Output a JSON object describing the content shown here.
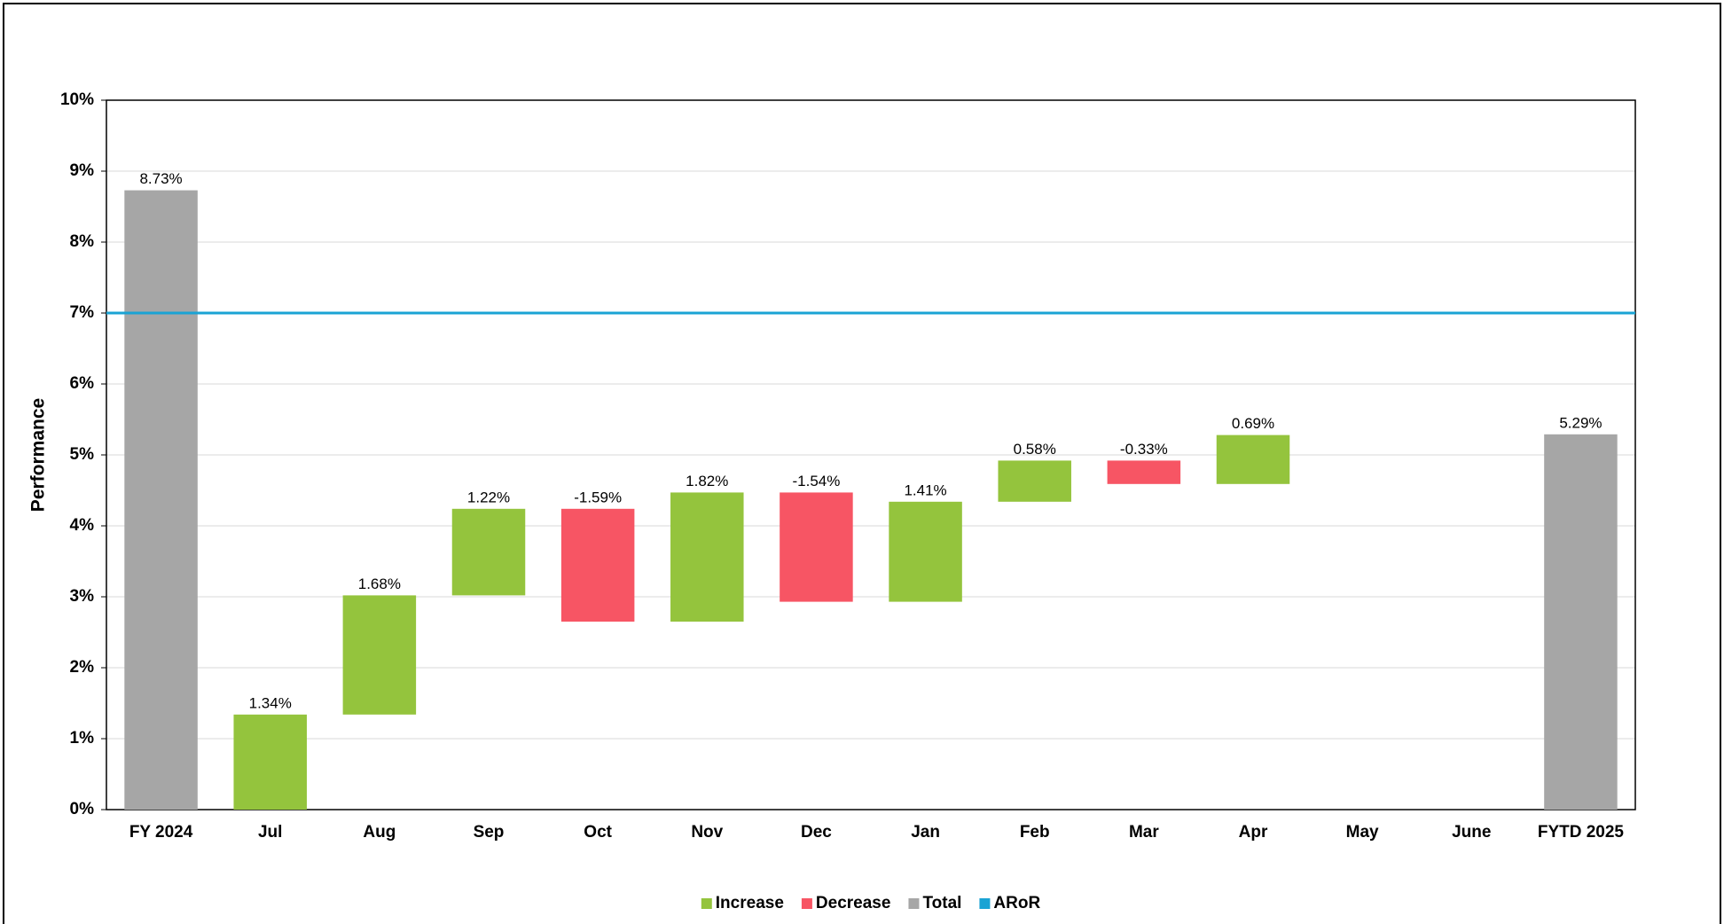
{
  "chart_data": {
    "type": "waterfall",
    "y_label": "Performance",
    "categories": [
      "FY 2024",
      "Jul",
      "Aug",
      "Sep",
      "Oct",
      "Nov",
      "Dec",
      "Jan",
      "Feb",
      "Mar",
      "Apr",
      "May",
      "June",
      "FYTD 2025"
    ],
    "series": [
      {
        "name": "Increase",
        "color": "#94c43d",
        "values": [
          null,
          1.34,
          1.68,
          1.22,
          null,
          1.82,
          null,
          1.41,
          0.58,
          null,
          0.69,
          null,
          null,
          null
        ],
        "value_labels": [
          null,
          "1.34%",
          "1.68%",
          "1.22%",
          null,
          "1.82%",
          null,
          "1.41%",
          "0.58%",
          null,
          "0.69%",
          null,
          null,
          null
        ]
      },
      {
        "name": "Decrease",
        "color": "#f75564",
        "values": [
          null,
          null,
          null,
          null,
          -1.59,
          null,
          -1.54,
          null,
          null,
          -0.33,
          null,
          null,
          null,
          null
        ],
        "value_labels": [
          null,
          null,
          null,
          null,
          "-1.59%",
          null,
          "-1.54%",
          null,
          null,
          "-0.33%",
          null,
          null,
          null,
          null
        ]
      },
      {
        "name": "Total",
        "color": "#a6a6a6",
        "values": [
          8.73,
          null,
          null,
          null,
          null,
          null,
          null,
          null,
          null,
          null,
          null,
          null,
          null,
          5.29
        ],
        "value_labels": [
          "8.73%",
          null,
          null,
          null,
          null,
          null,
          null,
          null,
          null,
          null,
          null,
          null,
          null,
          "5.29%"
        ]
      },
      {
        "name": "ARoR",
        "color": "#1aa3d4",
        "value": 7
      }
    ],
    "ylim": [
      0,
      10
    ],
    "yticks": [
      {
        "value": 0,
        "label": "0%"
      },
      {
        "value": 1,
        "label": "1%"
      },
      {
        "value": 2,
        "label": "2%"
      },
      {
        "value": 3,
        "label": "3%"
      },
      {
        "value": 4,
        "label": "4%"
      },
      {
        "value": 5,
        "label": "5%"
      },
      {
        "value": 6,
        "label": "6%"
      },
      {
        "value": 7,
        "label": "7%"
      },
      {
        "value": 8,
        "label": "8%"
      },
      {
        "value": 9,
        "label": "9%"
      },
      {
        "value": 10,
        "label": "10%"
      }
    ],
    "grid": true,
    "legend": "bottom"
  }
}
